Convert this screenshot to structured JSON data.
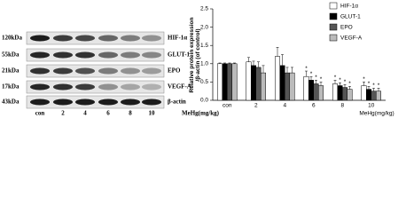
{
  "blot": {
    "markers": [
      "120kDa",
      "55kDa",
      "21kDa",
      "17kDa",
      "43kDa"
    ],
    "proteins": [
      "HIF-1α",
      "GLUT-1",
      "EPO",
      "VEGF-A",
      "β-actin"
    ],
    "lanes": [
      "con",
      "2",
      "4",
      "6",
      "8",
      "10"
    ],
    "xlabel": "MeHg(mg/kg)"
  },
  "chart_data": {
    "type": "bar",
    "ylabel": [
      "Relative protein expression",
      "/β-actin (of control)"
    ],
    "xlabel": "MeHg(mg/kg)",
    "categories": [
      "con",
      "2",
      "4",
      "6",
      "8",
      "10"
    ],
    "ylim": [
      0,
      2.5
    ],
    "yticks": [
      {
        "value": 0,
        "label": "0.0"
      },
      {
        "value": 0.5,
        "label": "0.5"
      },
      {
        "value": 1,
        "label": "1.0"
      },
      {
        "value": 1.5,
        "label": "1.5"
      },
      {
        "value": 2,
        "label": "2.0"
      },
      {
        "value": 2.5,
        "label": "2.5"
      }
    ],
    "series": [
      {
        "name": "HIF-1α",
        "color": "#ffffff",
        "values": [
          1,
          1.05,
          1.2,
          0.65,
          0.45,
          0.4
        ],
        "errors": [
          0.02,
          0.12,
          0.25,
          0.15,
          0.1,
          0.1
        ],
        "stars": [
          null,
          null,
          null,
          "*",
          "*",
          "*"
        ]
      },
      {
        "name": "GLUT-1",
        "color": "#000000",
        "values": [
          1,
          0.95,
          0.95,
          0.55,
          0.4,
          0.3
        ],
        "errors": [
          0.02,
          0.12,
          0.3,
          0.1,
          0.08,
          0.08
        ],
        "stars": [
          null,
          null,
          null,
          "*",
          "*",
          "*"
        ]
      },
      {
        "name": "EPO",
        "color": "#555555",
        "values": [
          1,
          0.9,
          0.75,
          0.45,
          0.35,
          0.25
        ],
        "errors": [
          0.02,
          0.15,
          0.15,
          0.1,
          0.08,
          0.08
        ],
        "stars": [
          null,
          null,
          null,
          "*",
          "*",
          "*"
        ]
      },
      {
        "name": "VEGF-A",
        "color": "#bbbbbb",
        "values": [
          1,
          0.75,
          0.75,
          0.4,
          0.3,
          0.25
        ],
        "errors": [
          0.02,
          0.2,
          0.15,
          0.1,
          0.08,
          0.08
        ],
        "stars": [
          null,
          null,
          null,
          "*",
          "*",
          "*"
        ]
      }
    ]
  }
}
